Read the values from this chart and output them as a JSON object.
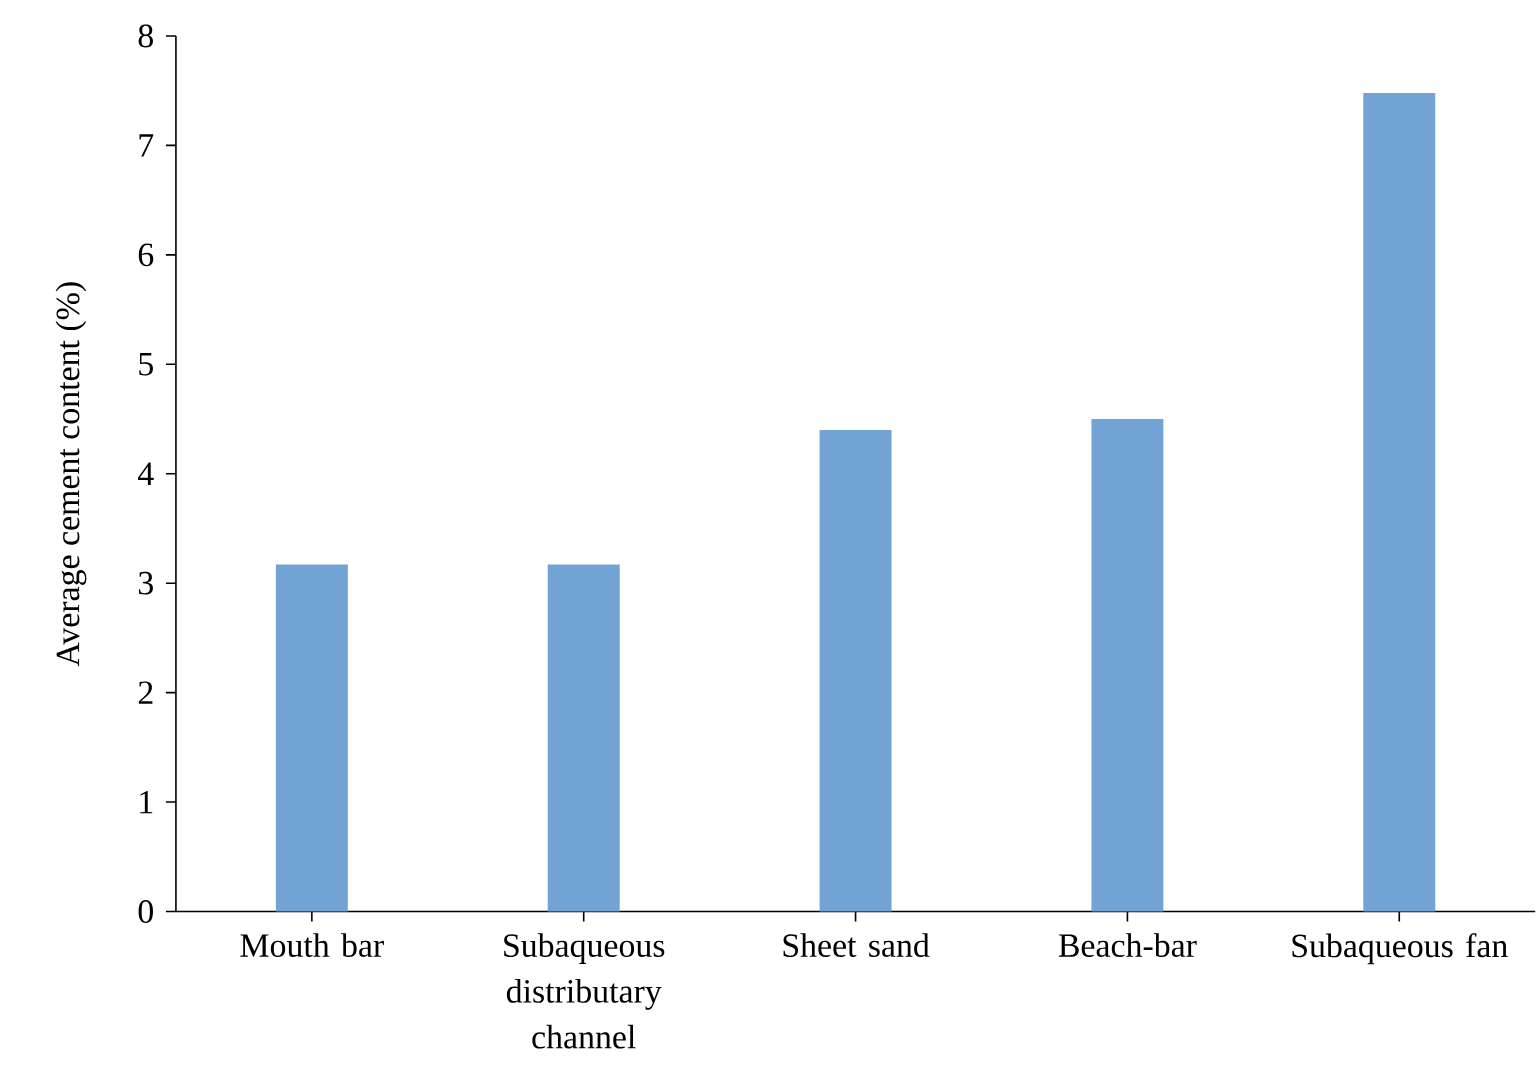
{
  "chart_data": {
    "type": "bar",
    "ylabel": "Average cement content (%)",
    "categories": [
      "Mouth bar",
      "Subaqueous distributary channel",
      "Sheet sand",
      "Beach-bar",
      "Subaqueous fan"
    ],
    "values": [
      3.17,
      3.17,
      4.4,
      4.5,
      7.48
    ],
    "color": "#71a3d4",
    "ylim": [
      0,
      8
    ],
    "yticks": [
      0,
      1,
      2,
      3,
      4,
      5,
      6,
      7,
      8
    ],
    "grid": false
  }
}
